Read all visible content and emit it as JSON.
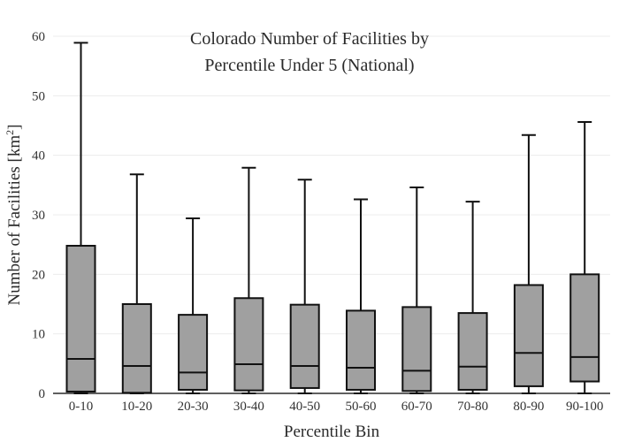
{
  "chart_data": {
    "type": "box",
    "title_lines": [
      "Colorado Number of Facilities by",
      "Percentile Under 5 (National)"
    ],
    "xlabel": "Percentile Bin",
    "ylabel_main": "Number of Facilities  [km",
    "ylabel_sup": "2",
    "ylabel_end": "]",
    "ylim": [
      0,
      60
    ],
    "yticks": [
      0,
      10,
      20,
      30,
      40,
      50,
      60
    ],
    "grid": true,
    "colors": {
      "box_fill": "#a0a0a0",
      "box_stroke": "#111111"
    },
    "categories": [
      "0-10",
      "10-20",
      "20-30",
      "30-40",
      "40-50",
      "50-60",
      "60-70",
      "70-80",
      "80-90",
      "90-100"
    ],
    "boxes": [
      {
        "min": 0,
        "q1": 0.3,
        "median": 5.8,
        "q3": 24.8,
        "max": 58.9
      },
      {
        "min": 0,
        "q1": 0.1,
        "median": 4.6,
        "q3": 15.0,
        "max": 36.8
      },
      {
        "min": 0,
        "q1": 0.6,
        "median": 3.5,
        "q3": 13.2,
        "max": 29.4
      },
      {
        "min": 0,
        "q1": 0.5,
        "median": 4.9,
        "q3": 16.0,
        "max": 37.9
      },
      {
        "min": 0,
        "q1": 0.9,
        "median": 4.6,
        "q3": 14.9,
        "max": 35.9
      },
      {
        "min": 0,
        "q1": 0.6,
        "median": 4.3,
        "q3": 13.9,
        "max": 32.6
      },
      {
        "min": 0,
        "q1": 0.4,
        "median": 3.8,
        "q3": 14.5,
        "max": 34.6
      },
      {
        "min": 0,
        "q1": 0.6,
        "median": 4.5,
        "q3": 13.5,
        "max": 32.2
      },
      {
        "min": 0,
        "q1": 1.2,
        "median": 6.8,
        "q3": 18.2,
        "max": 43.4
      },
      {
        "min": 0,
        "q1": 2.0,
        "median": 6.1,
        "q3": 20.0,
        "max": 45.6
      }
    ]
  }
}
